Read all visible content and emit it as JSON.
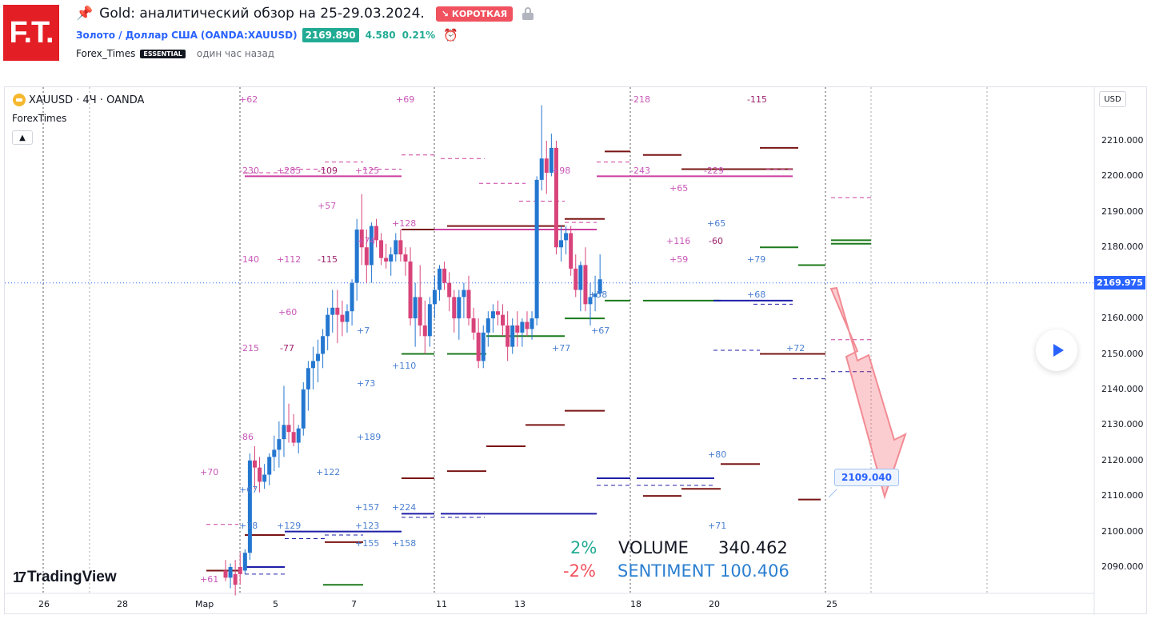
{
  "header": {
    "logo_text": "F.T.",
    "title": "Gold: аналитический обзор на 25-29.03.2024.",
    "direction_badge": "↘ КОРОТКАЯ",
    "symbol_name": "Золото / Доллар США",
    "symbol_code": "(OANDA:XAUUSD)",
    "price": "2169.890",
    "change": "4.580",
    "change_pct": "0.21%",
    "author": "Forex_Times",
    "author_badge": "ESSENTIAL",
    "time_ago": "один час назад"
  },
  "chart_header": {
    "legend": "XAUUSD · 4Ч · OANDA",
    "indicator": "ForexTimes",
    "collapse_icon": "chevron-up-icon"
  },
  "axis": {
    "currency": "USD",
    "y_ticks": [
      "2210.000",
      "2200.000",
      "2190.000",
      "2180.000",
      "2170.000",
      "2160.000",
      "2150.000",
      "2140.000",
      "2130.000",
      "2120.000",
      "2110.000",
      "2100.000",
      "2090.000"
    ],
    "x_ticks": [
      "26",
      "28",
      "Мар",
      "5",
      "7",
      "11",
      "13",
      "18",
      "20",
      "25"
    ],
    "last_price": "2169.975",
    "target_price": "2109.040"
  },
  "stats": {
    "pct_up": "2%",
    "pct_down": "-2%",
    "volume_label": "VOLUME",
    "volume_value": "340.462",
    "sentiment_label": "SENTIMENT",
    "sentiment_value": "100.406"
  },
  "annotations": [
    {
      "t": "+62",
      "c": "#c957b8"
    },
    {
      "t": "+69",
      "c": "#c957b8"
    },
    {
      "t": "-218",
      "c": "#c957b8"
    },
    {
      "t": "-115",
      "c": "#9c1f6b"
    },
    {
      "t": "-230",
      "c": "#c957b8"
    },
    {
      "t": "+285",
      "c": "#c957b8"
    },
    {
      "t": "-109",
      "c": "#9c1f6b"
    },
    {
      "t": "+125",
      "c": "#c957b8"
    },
    {
      "t": "+98",
      "c": "#c957b8"
    },
    {
      "t": "-243",
      "c": "#c957b8"
    },
    {
      "t": "-229",
      "c": "#c957b8"
    },
    {
      "t": "+65",
      "c": "#c957b8"
    },
    {
      "t": "+57",
      "c": "#c957b8"
    },
    {
      "t": "+128",
      "c": "#c957b8"
    },
    {
      "t": "+65",
      "c": "#4a7fd0"
    },
    {
      "t": "+74",
      "c": "#c957b8"
    },
    {
      "t": "+116",
      "c": "#c957b8"
    },
    {
      "t": "-60",
      "c": "#9c1f6b"
    },
    {
      "t": "-140",
      "c": "#c957b8"
    },
    {
      "t": "+112",
      "c": "#c957b8"
    },
    {
      "t": "-115",
      "c": "#9c1f6b"
    },
    {
      "t": "+59",
      "c": "#c957b8"
    },
    {
      "t": "+79",
      "c": "#4a7fd0"
    },
    {
      "t": "+68",
      "c": "#4a7fd0"
    },
    {
      "t": "+60",
      "c": "#c957b8"
    },
    {
      "t": "+58",
      "c": "#4a7fd0"
    },
    {
      "t": "+7",
      "c": "#4a7fd0"
    },
    {
      "t": "+67",
      "c": "#4a7fd0"
    },
    {
      "t": "-215",
      "c": "#c957b8"
    },
    {
      "t": "-77",
      "c": "#9c1f6b"
    },
    {
      "t": "+77",
      "c": "#4a7fd0"
    },
    {
      "t": "+72",
      "c": "#4a7fd0"
    },
    {
      "t": "+110",
      "c": "#4a7fd0"
    },
    {
      "t": "+73",
      "c": "#4a7fd0"
    },
    {
      "t": "-86",
      "c": "#c957b8"
    },
    {
      "t": "+189",
      "c": "#4a7fd0"
    },
    {
      "t": "+80",
      "c": "#4a7fd0"
    },
    {
      "t": "+70",
      "c": "#c957b8"
    },
    {
      "t": "+122",
      "c": "#4a7fd0"
    },
    {
      "t": "+67",
      "c": "#4a7fd0"
    },
    {
      "t": "+157",
      "c": "#4a7fd0"
    },
    {
      "t": "+224",
      "c": "#4a7fd0"
    },
    {
      "t": "+78",
      "c": "#4a7fd0"
    },
    {
      "t": "+129",
      "c": "#4a7fd0"
    },
    {
      "t": "+123",
      "c": "#4a7fd0"
    },
    {
      "t": "+71",
      "c": "#4a7fd0"
    },
    {
      "t": "+155",
      "c": "#4a7fd0"
    },
    {
      "t": "+158",
      "c": "#4a7fd0"
    },
    {
      "t": "+61",
      "c": "#c957b8"
    }
  ],
  "colors": {
    "up": "#2477d0",
    "down": "#d8437a",
    "accent": "#2962ff",
    "badge_red": "#f0525f",
    "green_price": "#22ab94",
    "green_level": "#1b7a1b",
    "darkred_level": "#7a1414",
    "navy_level": "#1e1ea8",
    "pink_level": "#cc3f9f"
  },
  "watermark": "TradingView"
}
